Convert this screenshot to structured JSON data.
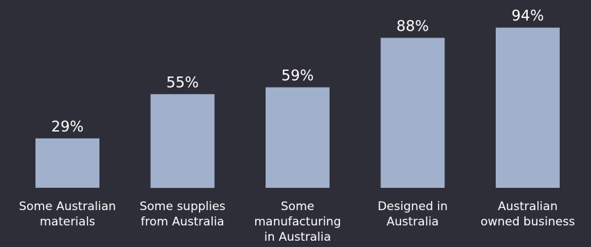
{
  "chart_data": {
    "type": "bar",
    "categories": [
      [
        "Some Australian",
        "materials"
      ],
      [
        "Some supplies",
        "from Australia"
      ],
      [
        "Some",
        "manufacturing",
        "in Australia"
      ],
      [
        "Designed in",
        "Australia"
      ],
      [
        "Australian",
        "owned business"
      ]
    ],
    "values": [
      29,
      55,
      59,
      88,
      94
    ],
    "value_labels": [
      "29%",
      "55%",
      "59%",
      "88%",
      "94%"
    ],
    "ylim": [
      0,
      100
    ],
    "grid": false,
    "colors": {
      "background": "#2e2e38",
      "bar": "#a1b0cd",
      "text": "#ffffff"
    }
  }
}
